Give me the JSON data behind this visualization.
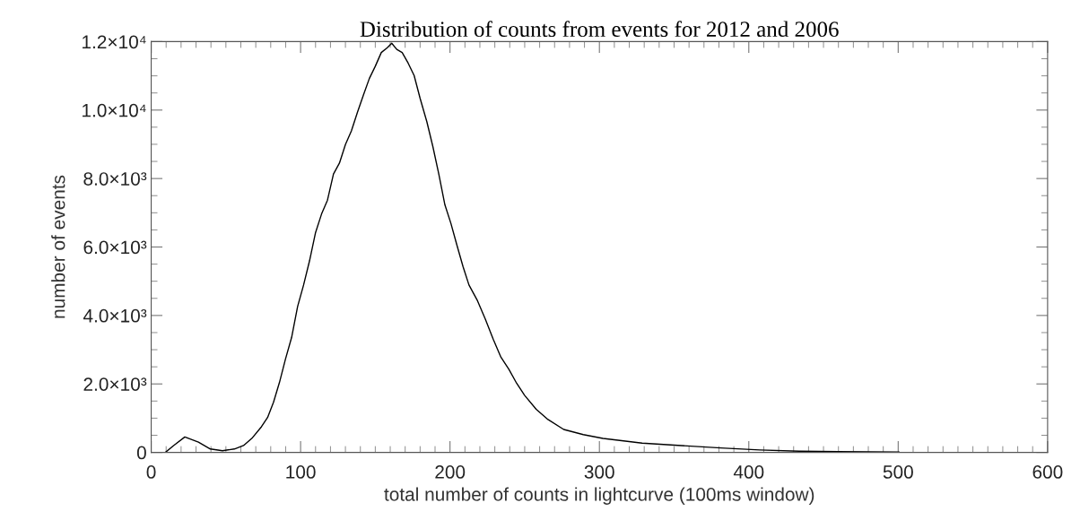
{
  "chart_data": {
    "type": "line",
    "title": "Distribution of counts from events for 2012 and 2006",
    "xlabel": "total number of counts in lightcurve (100ms window)",
    "ylabel": "number of events",
    "xlim": [
      0,
      600
    ],
    "xticks": [
      0,
      100,
      200,
      300,
      400,
      500,
      600
    ],
    "ylim": [
      0,
      12000
    ],
    "yticks": [
      0,
      {
        "value": 2000,
        "label": "2.0×10³"
      },
      {
        "value": 4000,
        "label": "4.0×10³"
      },
      {
        "value": 6000,
        "label": "6.0×10³"
      },
      {
        "value": 8000,
        "label": "8.0×10³"
      },
      {
        "value": 10000,
        "label": "1.0×10⁴"
      },
      {
        "value": 12000,
        "label": "1.2×10⁴"
      }
    ],
    "grid": false,
    "marker": "none",
    "line_style": "solid",
    "series": [
      {
        "color": "#000000",
        "x": [
          0,
          9.5,
          15,
          22.5,
          31.6,
          39.6,
          47.7,
          55.7,
          61.8,
          67.8,
          73.8,
          77.9,
          81.9,
          85.9,
          89.9,
          94,
          98,
          102,
          106,
          110,
          114,
          118,
          122,
          126,
          130,
          134,
          138,
          142,
          146,
          150,
          154,
          158,
          161,
          164.4,
          168,
          172,
          176,
          180,
          184.5,
          188.5,
          192.5,
          196.6,
          200.6,
          204.6,
          208.7,
          212.7,
          218.4,
          223.6,
          228.9,
          234.1,
          239.4,
          244.6,
          249.9,
          257.7,
          265.6,
          276.1,
          289.2,
          302.4,
          328.6,
          354.9,
          381.1,
          407.3,
          433.6,
          459.8,
          500.5
        ],
        "values": [
          0,
          0,
          200,
          450,
          300,
          100,
          50,
          100,
          200,
          430,
          750,
          1020,
          1470,
          2050,
          2730,
          3360,
          4260,
          4890,
          5600,
          6420,
          6960,
          7370,
          8130,
          8450,
          8990,
          9390,
          9930,
          10430,
          10920,
          11280,
          11680,
          11820,
          11950,
          11770,
          11680,
          11370,
          11010,
          10340,
          9660,
          8940,
          8130,
          7230,
          6690,
          6060,
          5430,
          4890,
          4430,
          3900,
          3310,
          2780,
          2430,
          2020,
          1670,
          1260,
          960,
          670,
          520,
          410,
          270,
          200,
          130,
          70,
          35,
          25,
          10
        ]
      }
    ]
  }
}
